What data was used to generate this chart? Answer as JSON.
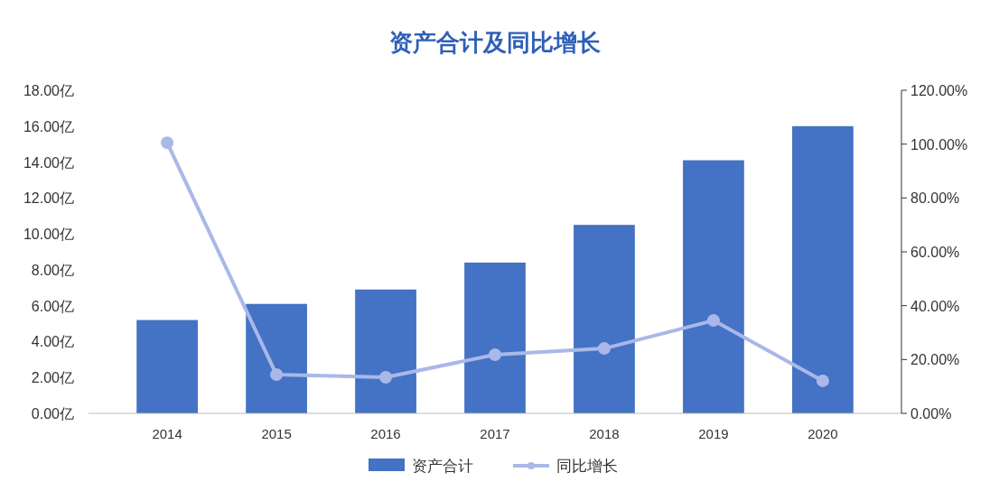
{
  "chart_data": {
    "type": "bar",
    "title": "资产合计及同比增长",
    "categories": [
      "2014",
      "2015",
      "2016",
      "2017",
      "2018",
      "2019",
      "2020"
    ],
    "series": [
      {
        "name": "资产合计",
        "color": "#4472c4",
        "values": [
          5.2,
          6.1,
          6.9,
          8.4,
          10.5,
          14.1,
          16.0
        ]
      },
      {
        "name": "同比增长",
        "type": "line",
        "axis": "y2",
        "color": "#a9b8e8",
        "values": [
          100.5,
          14.4,
          13.4,
          21.8,
          24.1,
          34.5,
          12.1
        ]
      }
    ],
    "ylim": [
      0,
      18
    ],
    "yticks": [
      {
        "value": 0,
        "label": "0.00亿"
      },
      {
        "value": 2,
        "label": "2.00亿"
      },
      {
        "value": 4,
        "label": "4.00亿"
      },
      {
        "value": 6,
        "label": "6.00亿"
      },
      {
        "value": 8,
        "label": "8.00亿"
      },
      {
        "value": 10,
        "label": "10.00亿"
      },
      {
        "value": 12,
        "label": "12.00亿"
      },
      {
        "value": 14,
        "label": "14.00亿"
      },
      {
        "value": 16,
        "label": "16.00亿"
      },
      {
        "value": 18,
        "label": "18.00亿"
      }
    ],
    "y2lim": [
      0,
      120
    ],
    "y2ticks": [
      {
        "value": 0,
        "label": "0.00%"
      },
      {
        "value": 20,
        "label": "20.00%"
      },
      {
        "value": 40,
        "label": "40.00%"
      },
      {
        "value": 60,
        "label": "60.00%"
      },
      {
        "value": 80,
        "label": "80.00%"
      },
      {
        "value": 100,
        "label": "100.00%"
      },
      {
        "value": 120,
        "label": "120.00%"
      }
    ],
    "legend": "bottom",
    "marker": "circle",
    "grid": false
  }
}
